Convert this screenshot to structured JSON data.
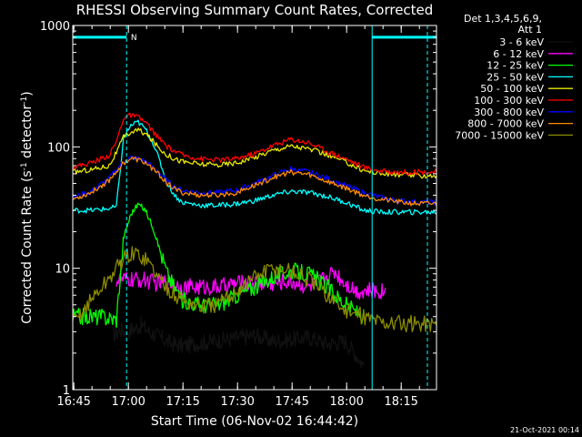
{
  "chart_data": {
    "type": "line",
    "title": "RHESSI Observing Summary Count Rates, Corrected",
    "xlabel": "Start Time (06-Nov-02 16:44:42)",
    "ylabel_parts": [
      "Corrected Count Rate (s",
      "-1",
      " detector",
      "-1",
      ")"
    ],
    "yscale": "log",
    "ylim": [
      1,
      1000
    ],
    "xlim_minutes": [
      0,
      100
    ],
    "xticks": [
      {
        "label": "16:45",
        "t": 0.3
      },
      {
        "label": "17:00",
        "t": 15.3
      },
      {
        "label": "17:15",
        "t": 30.3
      },
      {
        "label": "17:30",
        "t": 45.3
      },
      {
        "label": "17:45",
        "t": 60.3
      },
      {
        "label": "18:00",
        "t": 75.3
      },
      {
        "label": "18:15",
        "t": 90.3
      }
    ],
    "yticks": [
      {
        "label": "1",
        "v": 1
      },
      {
        "label": "10",
        "v": 10
      },
      {
        "label": "100",
        "v": 100
      },
      {
        "label": "1000",
        "v": 1000
      }
    ],
    "legend_header": [
      "Det 1,3,4,5,6,9,",
      "Att 1"
    ],
    "legend_position": "right",
    "grid": false,
    "annotations": {
      "night_bars": [
        {
          "from": 0,
          "to": 14.8
        },
        {
          "from": 82.3,
          "to": 100
        }
      ],
      "night_level": 800,
      "saa_lines": [
        0,
        14.8,
        82.3,
        97.5
      ],
      "n_marker": {
        "label": "N",
        "t": 16.8
      }
    },
    "series": [
      {
        "name": "3 - 6 keV",
        "color": "#000000",
        "x": [
          11,
          13,
          15,
          17,
          19,
          21,
          24,
          27,
          30,
          50,
          55,
          60,
          65,
          70,
          75,
          80
        ],
        "y": [
          2.8,
          3.1,
          3.0,
          3.2,
          3.4,
          3.0,
          2.7,
          2.4,
          2.3,
          2.8,
          2.5,
          2.6,
          2.7,
          2.4,
          2.5,
          1.6
        ]
      },
      {
        "name": "6 - 12 keV",
        "color": "#ff00ff",
        "x": [
          12,
          14,
          17,
          20,
          23,
          26,
          30,
          35,
          40,
          45,
          50,
          55,
          60,
          65,
          70,
          72,
          74,
          78,
          82,
          86
        ],
        "y": [
          8,
          8,
          8,
          8,
          7.5,
          7.8,
          7,
          7,
          7,
          7.5,
          7.5,
          7.5,
          7.8,
          7,
          8.5,
          9.5,
          8,
          6.5,
          6.5,
          6.5
        ]
      },
      {
        "name": "12 - 25 keV",
        "color": "#00ff00",
        "x": [
          0,
          4,
          8,
          12,
          14,
          16,
          18,
          20,
          22,
          24,
          26,
          28,
          30,
          35,
          40,
          45,
          50,
          55,
          60,
          65,
          70,
          75,
          80
        ],
        "y": [
          4,
          4,
          4,
          3.8,
          18,
          28,
          34,
          30,
          22,
          14,
          9,
          7,
          5.5,
          5,
          5,
          6,
          7,
          8.5,
          9.5,
          9,
          7,
          5,
          4
        ]
      },
      {
        "name": "25 - 50 keV",
        "color": "#00ffff",
        "x": [
          0,
          5,
          10,
          12,
          14,
          16,
          18,
          20,
          22,
          24,
          26,
          28,
          30,
          35,
          40,
          45,
          50,
          55,
          60,
          65,
          70,
          75,
          80,
          85,
          90,
          95,
          100
        ],
        "y": [
          30,
          30,
          31,
          32,
          120,
          150,
          160,
          140,
          110,
          75,
          50,
          40,
          35,
          33,
          33,
          34,
          36,
          40,
          43,
          42,
          39,
          35,
          30,
          29,
          29,
          29,
          29
        ]
      },
      {
        "name": "50 - 100 keV",
        "color": "#e8e800",
        "x": [
          0,
          5,
          10,
          12,
          14,
          16,
          18,
          20,
          22,
          24,
          26,
          28,
          30,
          35,
          40,
          45,
          50,
          55,
          60,
          65,
          70,
          75,
          80,
          85,
          90,
          95,
          100
        ],
        "y": [
          62,
          65,
          70,
          90,
          120,
          132,
          138,
          128,
          112,
          96,
          86,
          80,
          76,
          72,
          71,
          74,
          82,
          94,
          102,
          96,
          86,
          75,
          64,
          60,
          59,
          58,
          58
        ]
      },
      {
        "name": "100 - 300 keV",
        "color": "#ff0000",
        "x": [
          0,
          5,
          10,
          12,
          14,
          16,
          18,
          20,
          22,
          24,
          26,
          28,
          30,
          35,
          40,
          45,
          50,
          55,
          60,
          65,
          70,
          75,
          80,
          85,
          90,
          95,
          100
        ],
        "y": [
          68,
          74,
          85,
          110,
          175,
          182,
          175,
          160,
          135,
          115,
          100,
          92,
          86,
          80,
          78,
          80,
          88,
          102,
          116,
          108,
          92,
          80,
          68,
          63,
          62,
          62,
          62
        ]
      },
      {
        "name": "300 - 800 keV",
        "color": "#0000ff",
        "x": [
          0,
          5,
          10,
          12,
          14,
          16,
          18,
          20,
          22,
          24,
          26,
          28,
          30,
          35,
          40,
          45,
          50,
          55,
          60,
          65,
          70,
          75,
          80,
          85,
          90,
          95,
          100
        ],
        "y": [
          38,
          43,
          55,
          65,
          76,
          82,
          80,
          76,
          68,
          60,
          52,
          47,
          44,
          42,
          42,
          44,
          50,
          58,
          66,
          62,
          55,
          48,
          42,
          38,
          36,
          35,
          35
        ]
      },
      {
        "name": "800 - 7000 keV",
        "color": "#ff8c00",
        "x": [
          0,
          5,
          10,
          12,
          14,
          16,
          18,
          20,
          22,
          24,
          26,
          28,
          30,
          35,
          40,
          45,
          50,
          55,
          60,
          65,
          70,
          75,
          80,
          85,
          90,
          95,
          100
        ],
        "y": [
          37,
          42,
          53,
          63,
          74,
          80,
          78,
          74,
          66,
          58,
          50,
          45,
          42,
          40,
          40,
          42,
          48,
          56,
          62,
          59,
          52,
          46,
          40,
          37,
          35,
          34,
          34
        ]
      },
      {
        "name": "7000 - 15000 keV",
        "color": "#8b8b00",
        "x": [
          0,
          3,
          6,
          9,
          12,
          14,
          16,
          18,
          20,
          22,
          24,
          26,
          28,
          30,
          35,
          40,
          45,
          50,
          55,
          60,
          65,
          70,
          75,
          80,
          85,
          90,
          95,
          100
        ],
        "y": [
          3.5,
          4.5,
          6,
          7.5,
          10,
          12,
          13,
          13,
          12,
          10,
          8,
          7,
          6,
          5.5,
          4.8,
          5,
          6.5,
          8.5,
          10,
          9.5,
          8,
          6,
          4.5,
          4,
          3.6,
          3.5,
          3.5,
          3.5
        ]
      }
    ]
  },
  "footer": {
    "timestamp": "21-Oct-2021 00:14"
  }
}
